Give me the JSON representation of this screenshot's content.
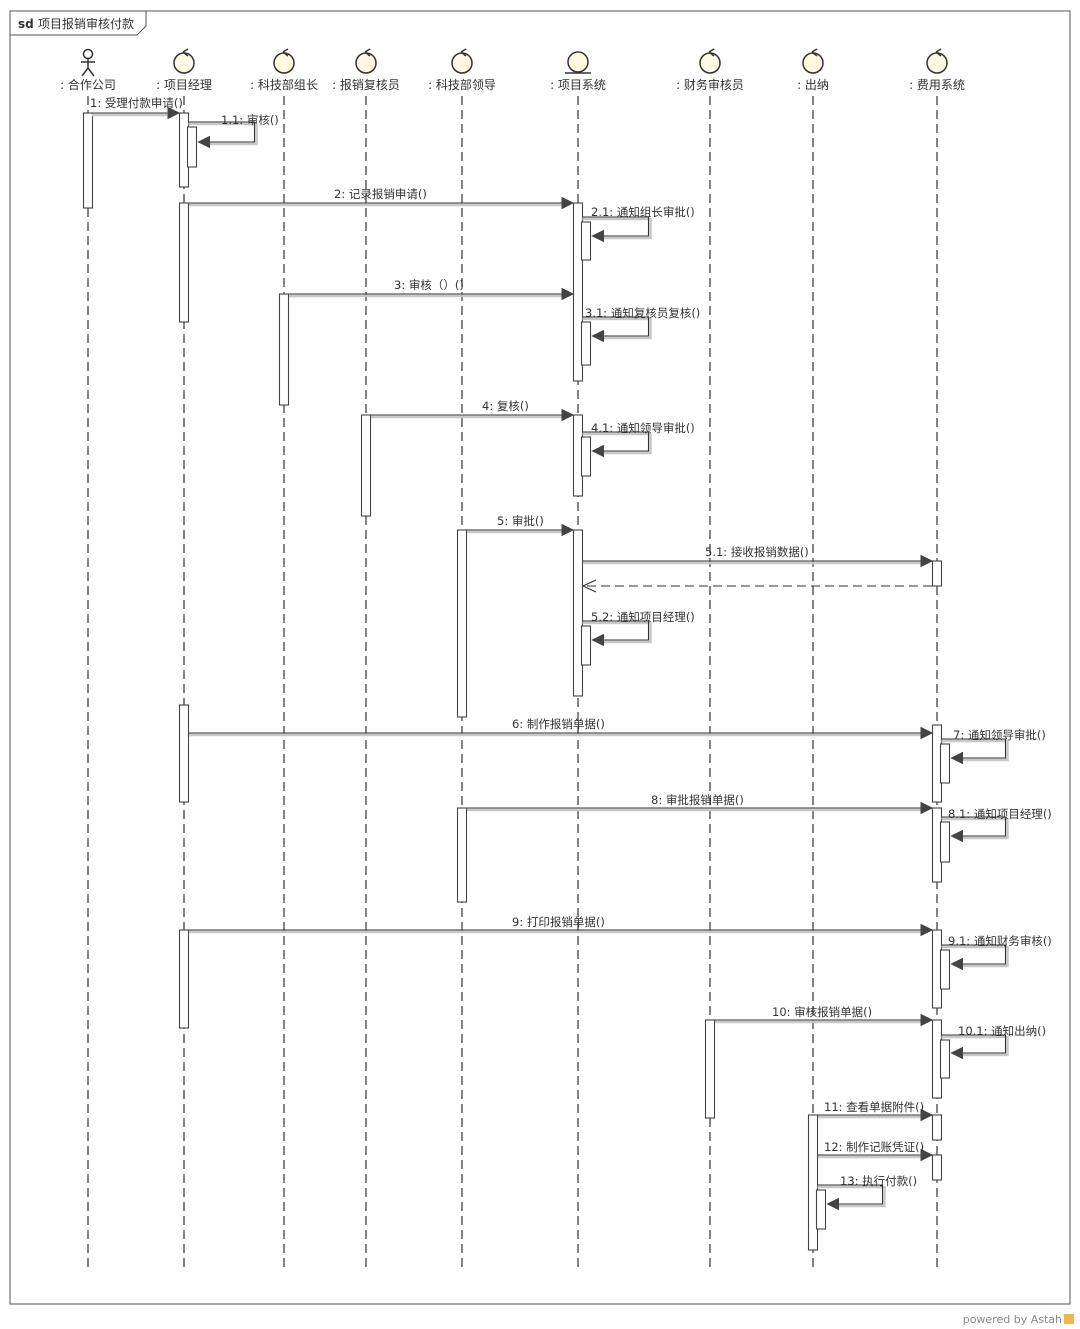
{
  "frame": {
    "keyword": "sd",
    "title": "项目报销审核付款"
  },
  "lifelines": [
    {
      "id": "partner",
      "label": ": 合作公司",
      "kind": "actor"
    },
    {
      "id": "pm",
      "label": ": 项目经理",
      "kind": "control"
    },
    {
      "id": "teamlead",
      "label": ": 科技部组长",
      "kind": "control"
    },
    {
      "id": "reviewer",
      "label": ": 报销复核员",
      "kind": "control"
    },
    {
      "id": "leader",
      "label": ": 科技部领导",
      "kind": "control"
    },
    {
      "id": "projsys",
      "label": ": 项目系统",
      "kind": "entity"
    },
    {
      "id": "auditor",
      "label": ": 财务审核员",
      "kind": "control"
    },
    {
      "id": "cashier",
      "label": ": 出纳",
      "kind": "control"
    },
    {
      "id": "feesys",
      "label": ": 费用系统",
      "kind": "control"
    }
  ],
  "messages": [
    {
      "id": "m1",
      "label": "1: 受理付款申请()",
      "from": "partner",
      "to": "pm"
    },
    {
      "id": "m1_1",
      "label": "1.1: 审核()",
      "from": "pm",
      "to": "pm"
    },
    {
      "id": "m2",
      "label": "2: 记录报销申请()",
      "from": "pm",
      "to": "projsys"
    },
    {
      "id": "m2_1",
      "label": "2.1: 通知组长审批()",
      "from": "projsys",
      "to": "projsys"
    },
    {
      "id": "m3",
      "label": "3: 审核（）()",
      "from": "teamlead",
      "to": "projsys"
    },
    {
      "id": "m3_1",
      "label": "3.1: 通知复核员复核()",
      "from": "projsys",
      "to": "projsys"
    },
    {
      "id": "m4",
      "label": "4: 复核()",
      "from": "reviewer",
      "to": "projsys"
    },
    {
      "id": "m4_1",
      "label": "4.1: 通知领导审批()",
      "from": "projsys",
      "to": "projsys"
    },
    {
      "id": "m5",
      "label": "5: 审批()",
      "from": "leader",
      "to": "projsys"
    },
    {
      "id": "m5_1",
      "label": "5.1: 接收报销数据()",
      "from": "projsys",
      "to": "feesys"
    },
    {
      "id": "m5_1r",
      "label": "",
      "from": "feesys",
      "to": "projsys"
    },
    {
      "id": "m5_2",
      "label": "5.2: 通知项目经理()",
      "from": "projsys",
      "to": "projsys"
    },
    {
      "id": "m6",
      "label": "6: 制作报销单据()",
      "from": "pm",
      "to": "feesys"
    },
    {
      "id": "m7",
      "label": "7: 通知领导审批()",
      "from": "feesys",
      "to": "feesys"
    },
    {
      "id": "m8",
      "label": "8: 审批报销单据()",
      "from": "leader",
      "to": "feesys"
    },
    {
      "id": "m8_1",
      "label": "8.1: 通知项目经理()",
      "from": "feesys",
      "to": "feesys"
    },
    {
      "id": "m9",
      "label": "9: 打印报销单据()",
      "from": "pm",
      "to": "feesys"
    },
    {
      "id": "m9_1",
      "label": "9.1: 通知财务审核()",
      "from": "feesys",
      "to": "feesys"
    },
    {
      "id": "m10",
      "label": "10: 审核报销单据()",
      "from": "auditor",
      "to": "feesys"
    },
    {
      "id": "m10_1",
      "label": "10.1: 通知出纳()",
      "from": "feesys",
      "to": "feesys"
    },
    {
      "id": "m11",
      "label": "11: 查看单据附件()",
      "from": "cashier",
      "to": "feesys"
    },
    {
      "id": "m12",
      "label": "12: 制作记账凭证()",
      "from": "cashier",
      "to": "feesys"
    },
    {
      "id": "m13",
      "label": "13: 执行付款()",
      "from": "cashier",
      "to": "cashier"
    }
  ],
  "footer": {
    "powered_by": "powered by Astah"
  }
}
